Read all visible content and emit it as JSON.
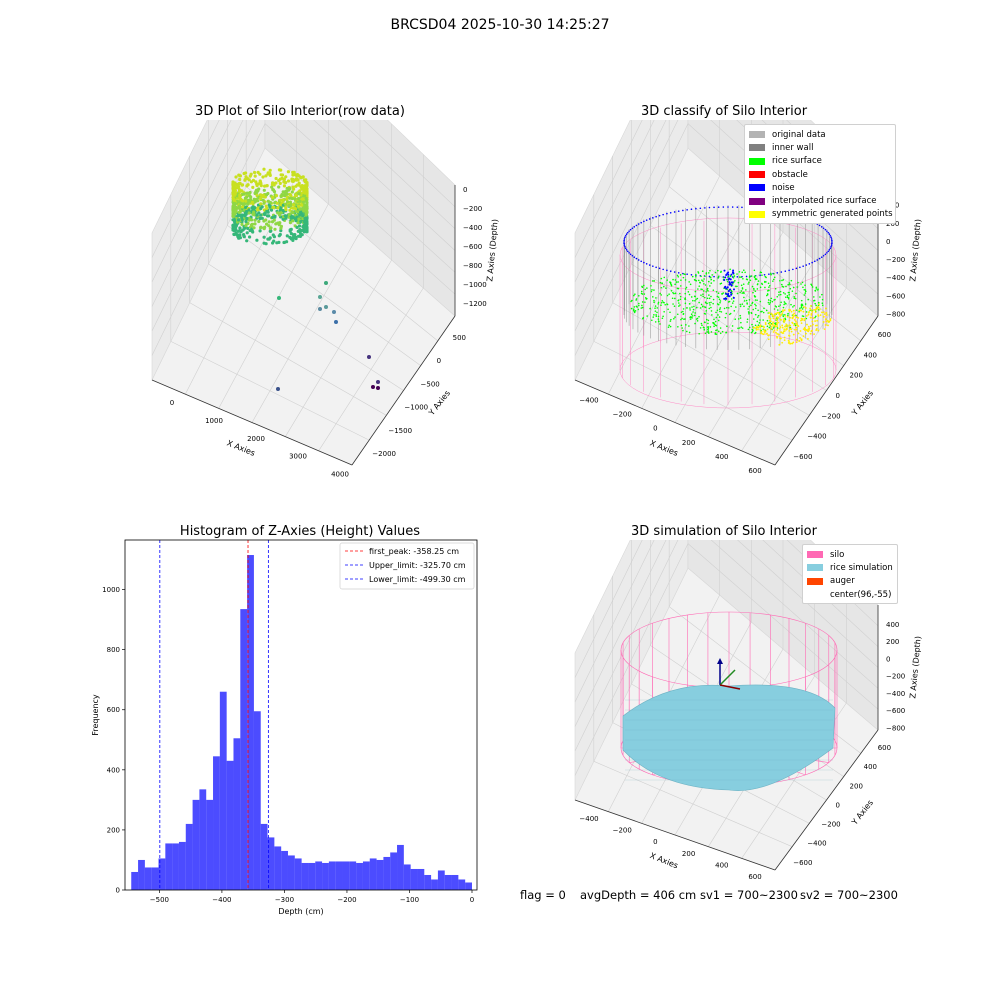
{
  "suptitle": "BRCSD04 2025-10-30 14:25:27",
  "footer": {
    "flag": "flag = 0",
    "avg_depth": "avgDepth = 406 cm",
    "sv1": "sv1 = 700~2300",
    "sv2": "sv2 = 700~2300"
  },
  "colors": {
    "silo_pink": "#ff69b4",
    "rice_sim": "#87cedf",
    "auger": "#ff4500",
    "hist_bar": "#0000ff",
    "rice_surface": "#00ff00",
    "noise": "#0000ff",
    "symmetric": "#ffff00",
    "inner_wall": "#808080"
  },
  "panels": {
    "raw": {
      "title": "3D Plot of Silo Interior(row data)",
      "chart_data": {
        "type": "scatter",
        "projection": "3d",
        "xlabel": "X Axies",
        "ylabel": "Y Axies",
        "zlabel": "Z Axies (Depth)",
        "x_ticks": [
          "0",
          "1000",
          "2000",
          "3000",
          "4000"
        ],
        "y_ticks": [
          "500",
          "0",
          "−500",
          "−1000",
          "−1500",
          "−2000"
        ],
        "z_ticks": [
          "0",
          "−200",
          "−400",
          "−600",
          "−800",
          "−1000",
          "−1200"
        ],
        "colormap": "viridis",
        "grid": true
      }
    },
    "classify": {
      "title": "3D classify of Silo Interior",
      "chart_data": {
        "type": "scatter",
        "projection": "3d",
        "xlabel": "X Axies",
        "ylabel": "Y Axies",
        "zlabel": "Z Axies (Depth)",
        "x_ticks": [
          "−400",
          "−200",
          "0",
          "200",
          "400",
          "600"
        ],
        "y_ticks": [
          "600",
          "400",
          "200",
          "0",
          "−200",
          "−400",
          "−600"
        ],
        "z_ticks": [
          "400",
          "200",
          "0",
          "−200",
          "−400",
          "−600",
          "−800"
        ],
        "legend_position": "top-right",
        "legend": [
          {
            "label": "original data",
            "color": "#b3b3b3"
          },
          {
            "label": "inner wall",
            "color": "#808080"
          },
          {
            "label": "rice surface",
            "color": "#00ff00"
          },
          {
            "label": "obstacle",
            "color": "#ff0000"
          },
          {
            "label": "noise",
            "color": "#0000ff"
          },
          {
            "label": "interpolated rice surface",
            "color": "#800080"
          },
          {
            "label": "symmetric generated points",
            "color": "#ffff00"
          }
        ],
        "grid": true
      }
    },
    "hist": {
      "title": "Histogram of Z-Axies (Height) Values",
      "chart_data": {
        "type": "bar",
        "xlabel": "Depth (cm)",
        "ylabel": "Frequency",
        "xlim": [
          -555,
          8
        ],
        "ylim": [
          0,
          1165
        ],
        "x_ticks": [
          -500,
          -400,
          -300,
          -200,
          -100,
          0
        ],
        "x_tick_labels": [
          "−500",
          "−400",
          "−300",
          "−200",
          "−100",
          "0"
        ],
        "y_ticks": [
          0,
          200,
          400,
          600,
          800,
          1000
        ],
        "y_tick_labels": [
          "0",
          "200",
          "400",
          "600",
          "800",
          "1000"
        ],
        "bin_start": -545,
        "bin_width": 10.9,
        "values": [
          60,
          100,
          75,
          75,
          105,
          155,
          155,
          160,
          220,
          300,
          335,
          300,
          445,
          660,
          430,
          505,
          935,
          1115,
          595,
          220,
          175,
          145,
          130,
          115,
          105,
          90,
          90,
          95,
          90,
          95,
          95,
          95,
          95,
          90,
          95,
          105,
          100,
          110,
          125,
          150,
          85,
          70,
          70,
          50,
          35,
          65,
          50,
          50,
          35,
          25
        ],
        "vlines": [
          {
            "x": -358.25,
            "color": "#ff0000",
            "label": "first_peak: -358.25 cm"
          },
          {
            "x": -325.7,
            "color": "#0000ff",
            "label": "Upper_limit: -325.70 cm"
          },
          {
            "x": -499.3,
            "color": "#0000ff",
            "label": "Lower_limit: -499.30 cm"
          }
        ],
        "legend_position": "top-right"
      }
    },
    "sim": {
      "title": "3D simulation of Silo Interior",
      "chart_data": {
        "type": "area",
        "projection": "3d",
        "xlabel": "X Axies",
        "ylabel": "Y Axies",
        "zlabel": "Z Axies (Depth)",
        "x_ticks": [
          "−400",
          "−200",
          "0",
          "200",
          "400",
          "600"
        ],
        "y_ticks": [
          "600",
          "400",
          "200",
          "0",
          "−200",
          "−400",
          "−600"
        ],
        "z_ticks": [
          "400",
          "200",
          "0",
          "−200",
          "−400",
          "−600",
          "−800"
        ],
        "legend_position": "top-right",
        "legend": [
          {
            "label": "silo",
            "color": "#ff69b4"
          },
          {
            "label": "rice simulation",
            "color": "#87cedf"
          },
          {
            "label": "auger",
            "color": "#ff4500"
          },
          {
            "label": "center(96,-55)",
            "color": ""
          }
        ],
        "grid": true
      }
    }
  }
}
